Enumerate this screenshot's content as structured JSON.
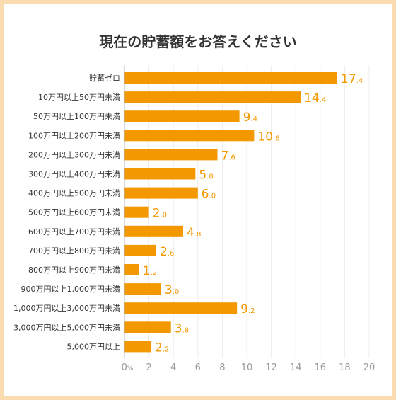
{
  "chart_data": {
    "type": "bar",
    "orientation": "horizontal",
    "title": "現在の貯蓄額をお答えください",
    "categories": [
      "貯蓄ゼロ",
      "10万円以上50万円未満",
      "50万円以上100万円未満",
      "100万円以上200万円未満",
      "200万円以上300万円未満",
      "300万円以上400万円未満",
      "400万円以上500万円未満",
      "500万円以上600万円未満",
      "600万円以上700万円未満",
      "700万円以上800万円未満",
      "800万円以上900万円未満",
      "900万円以上1,000万円未満",
      "1,000万円以上3,000万円未満",
      "3,000万円以上5,000万円未満",
      "5,000万円以上"
    ],
    "values": [
      17.4,
      14.4,
      9.4,
      10.6,
      7.6,
      5.8,
      6.0,
      2.0,
      4.8,
      2.6,
      1.2,
      3.0,
      9.2,
      3.8,
      2.2
    ],
    "xlim": [
      0,
      20
    ],
    "xticks": [
      "0",
      "2",
      "4",
      "6",
      "8",
      "10",
      "12",
      "14",
      "16",
      "18",
      "20"
    ],
    "xunit": "%",
    "bar_color": "#f39800",
    "label_color": "#f39800",
    "grid": true
  }
}
